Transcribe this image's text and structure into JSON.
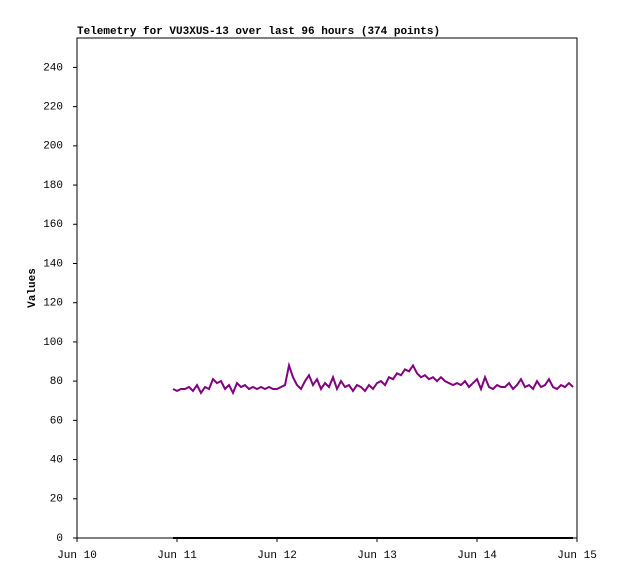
{
  "chart_data": {
    "type": "line",
    "title": "Telemetry for VU3XUS-13 over last 96 hours (374 points)",
    "y_label": "Values",
    "xlim": [
      10,
      15
    ],
    "xticks": [
      {
        "value": 10,
        "label": "Jun 10"
      },
      {
        "value": 11,
        "label": "Jun 11"
      },
      {
        "value": 12,
        "label": "Jun 12"
      },
      {
        "value": 13,
        "label": "Jun 13"
      },
      {
        "value": 14,
        "label": "Jun 14"
      },
      {
        "value": 15,
        "label": "Jun 15"
      }
    ],
    "ylim": [
      0,
      255
    ],
    "yticks": [
      0,
      20,
      40,
      60,
      80,
      100,
      120,
      140,
      160,
      180,
      200,
      220,
      240
    ],
    "series": [
      {
        "color": "#800080",
        "x": [
          10.96,
          11,
          11.04,
          11.08,
          11.12,
          11.16,
          11.2,
          11.24,
          11.28,
          11.32,
          11.36,
          11.4,
          11.44,
          11.48,
          11.52,
          11.56,
          11.6,
          11.64,
          11.68,
          11.72,
          11.76,
          11.8,
          11.84,
          11.88,
          11.92,
          11.96,
          12,
          12.04,
          12.08,
          12.12,
          12.16,
          12.2,
          12.24,
          12.28,
          12.32,
          12.36,
          12.4,
          12.44,
          12.48,
          12.52,
          12.56,
          12.6,
          12.64,
          12.68,
          12.72,
          12.76,
          12.8,
          12.84,
          12.88,
          12.92,
          12.96,
          13,
          13.04,
          13.08,
          13.12,
          13.16,
          13.2,
          13.24,
          13.28,
          13.32,
          13.36,
          13.4,
          13.44,
          13.48,
          13.52,
          13.56,
          13.6,
          13.64,
          13.68,
          13.72,
          13.76,
          13.8,
          13.84,
          13.88,
          13.92,
          13.96,
          14,
          14.04,
          14.08,
          14.12,
          14.16,
          14.2,
          14.24,
          14.28,
          14.32,
          14.36,
          14.4,
          14.44,
          14.48,
          14.52,
          14.56,
          14.6,
          14.64,
          14.68,
          14.72,
          14.76,
          14.8,
          14.84,
          14.88,
          14.92,
          14.96
        ],
        "values": [
          76,
          75,
          76,
          76,
          77,
          75,
          78,
          74,
          77,
          76,
          81,
          79,
          80,
          76,
          78,
          74,
          79,
          77,
          78,
          76,
          77,
          76,
          77,
          76,
          77,
          76,
          76,
          77,
          78,
          88,
          82,
          78,
          76,
          80,
          83,
          78,
          81,
          76,
          79,
          77,
          82,
          76,
          80,
          77,
          78,
          75,
          78,
          77,
          75,
          78,
          76,
          79,
          80,
          78,
          82,
          81,
          84,
          83,
          86,
          85,
          88,
          84,
          82,
          83,
          81,
          82,
          80,
          82,
          80,
          79,
          78,
          79,
          78,
          80,
          77,
          79,
          81,
          76,
          82,
          77,
          76,
          78,
          77,
          77,
          79,
          76,
          78,
          81,
          77,
          78,
          76,
          80,
          77,
          78,
          81,
          77,
          76,
          78,
          77,
          79,
          77
        ]
      },
      {
        "color": "#000000",
        "x": [
          10.96,
          14.96
        ],
        "values": [
          0,
          0
        ]
      }
    ]
  }
}
